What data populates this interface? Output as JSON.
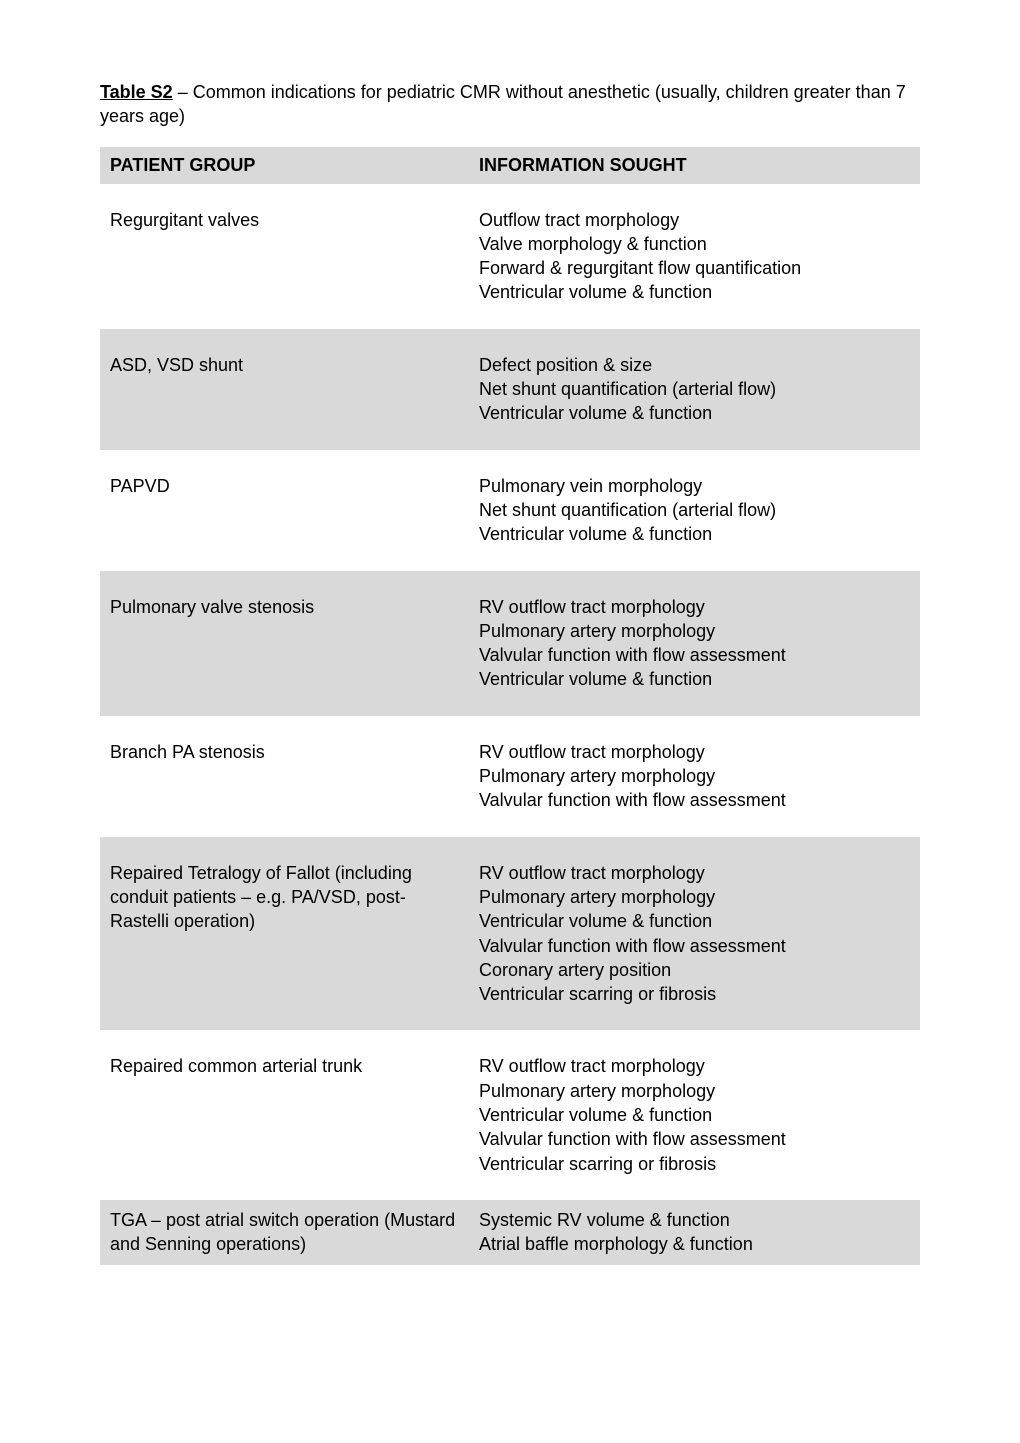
{
  "caption": {
    "label": "Table S2",
    "dash": " – ",
    "text": "Common indications for pediatric CMR without anesthetic (usually, children greater than 7 years age)"
  },
  "colors": {
    "shade": "#d9d9d9",
    "background": "#ffffff",
    "text": "#000000"
  },
  "headers": {
    "left": "PATIENT GROUP",
    "right": "INFORMATION SOUGHT"
  },
  "rows": [
    {
      "group": "Regurgitant valves",
      "info": [
        "Outflow tract morphology",
        "Valve morphology & function",
        "Forward & regurgitant flow quantification",
        "Ventricular volume & function"
      ],
      "shaded": false
    },
    {
      "group": "ASD, VSD shunt",
      "info": [
        "Defect position & size",
        "Net shunt quantification (arterial flow)",
        "Ventricular volume & function"
      ],
      "shaded": true
    },
    {
      "group": "PAPVD",
      "info": [
        "Pulmonary vein morphology",
        "Net shunt quantification (arterial flow)",
        "Ventricular volume & function"
      ],
      "shaded": false
    },
    {
      "group": "Pulmonary valve stenosis",
      "info": [
        "RV outflow tract morphology",
        "Pulmonary artery morphology",
        "Valvular function with flow assessment",
        "Ventricular volume & function"
      ],
      "shaded": true
    },
    {
      "group": "Branch PA stenosis",
      "info": [
        "RV outflow tract morphology",
        "Pulmonary artery morphology",
        "Valvular function with flow assessment"
      ],
      "shaded": false
    },
    {
      "group": "Repaired Tetralogy of Fallot (including conduit patients – e.g. PA/VSD, post-Rastelli operation)",
      "info": [
        "RV outflow tract morphology",
        "Pulmonary artery morphology",
        "Ventricular volume & function",
        "Valvular function with flow assessment",
        "Coronary artery position",
        "Ventricular scarring or fibrosis"
      ],
      "shaded": true
    },
    {
      "group": "Repaired common arterial trunk",
      "info": [
        "RV outflow tract morphology",
        "Pulmonary artery morphology",
        "Ventricular volume & function",
        "Valvular function with flow assessment",
        "Ventricular scarring or fibrosis"
      ],
      "shaded": false
    },
    {
      "group": "TGA – post atrial switch operation (Mustard and Senning operations)",
      "info": [
        "Systemic RV volume & function",
        "Atrial baffle morphology & function"
      ],
      "shaded": true,
      "tight": true
    }
  ]
}
